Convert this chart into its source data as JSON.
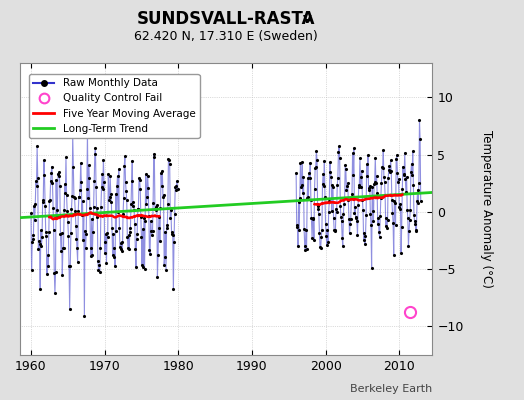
{
  "title": "SUNDSVALL-RASTA",
  "title_subscript": "V",
  "subtitle": "62.420 N, 17.310 E (Sweden)",
  "ylabel": "Temperature Anomaly (°C)",
  "credit": "Berkeley Earth",
  "background_color": "#e0e0e0",
  "plot_bg_color": "#ffffff",
  "xlim": [
    1958.5,
    2014.5
  ],
  "ylim": [
    -12.5,
    13.0
  ],
  "yticks": [
    -10,
    -5,
    0,
    5,
    10
  ],
  "xticks": [
    1960,
    1970,
    1980,
    1990,
    2000,
    2010
  ],
  "trend_x": [
    1958.5,
    2014.5
  ],
  "trend_y": [
    -0.5,
    1.7
  ],
  "qc_fail_x": 2011.4,
  "qc_fail_y": -8.7,
  "period1_start": 1960,
  "period1_end": 1979,
  "period2_start": 1996,
  "period2_end": 2012,
  "seed": 17
}
